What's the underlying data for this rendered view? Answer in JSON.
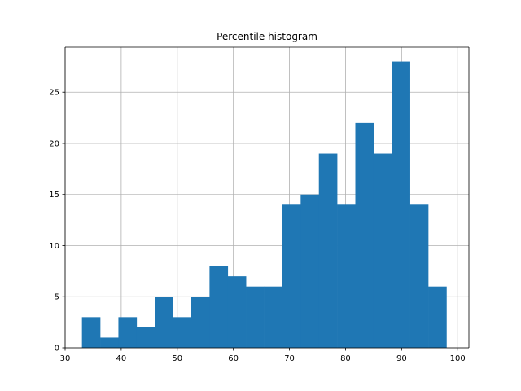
{
  "chart_data": {
    "type": "bar",
    "title": "Percentile histogram",
    "xlabel": "",
    "ylabel": "",
    "xlim": [
      30,
      102
    ],
    "ylim": [
      0,
      29.4
    ],
    "grid": true,
    "bar_color": "#1f77b4",
    "bins": [
      {
        "x0": 33.0,
        "x1": 36.25,
        "count": 3
      },
      {
        "x0": 36.25,
        "x1": 39.5,
        "count": 1
      },
      {
        "x0": 39.5,
        "x1": 42.75,
        "count": 3
      },
      {
        "x0": 42.75,
        "x1": 46.0,
        "count": 2
      },
      {
        "x0": 46.0,
        "x1": 49.25,
        "count": 5
      },
      {
        "x0": 49.25,
        "x1": 52.5,
        "count": 3
      },
      {
        "x0": 52.5,
        "x1": 55.75,
        "count": 5
      },
      {
        "x0": 55.75,
        "x1": 59.0,
        "count": 8
      },
      {
        "x0": 59.0,
        "x1": 62.25,
        "count": 7
      },
      {
        "x0": 62.25,
        "x1": 65.5,
        "count": 6
      },
      {
        "x0": 65.5,
        "x1": 68.75,
        "count": 6
      },
      {
        "x0": 68.75,
        "x1": 72.0,
        "count": 14
      },
      {
        "x0": 72.0,
        "x1": 75.25,
        "count": 15
      },
      {
        "x0": 75.25,
        "x1": 78.5,
        "count": 19
      },
      {
        "x0": 78.5,
        "x1": 81.75,
        "count": 14
      },
      {
        "x0": 81.75,
        "x1": 85.0,
        "count": 22
      },
      {
        "x0": 85.0,
        "x1": 88.25,
        "count": 19
      },
      {
        "x0": 88.25,
        "x1": 91.5,
        "count": 28
      },
      {
        "x0": 91.5,
        "x1": 94.75,
        "count": 14
      },
      {
        "x0": 94.75,
        "x1": 98.0,
        "count": 6
      }
    ],
    "x_ticks": [
      30,
      40,
      50,
      60,
      70,
      80,
      90,
      100
    ],
    "y_ticks": [
      0,
      5,
      10,
      15,
      20,
      25
    ]
  }
}
